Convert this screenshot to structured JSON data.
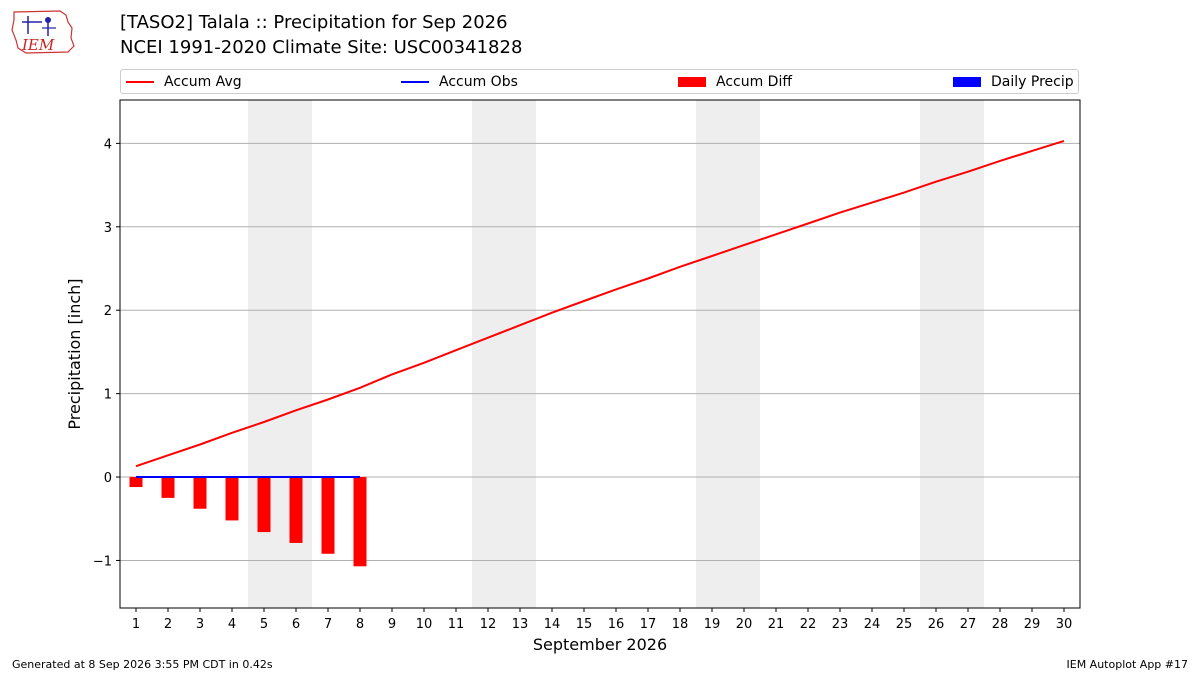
{
  "header": {
    "title_line1": "[TASO2] Talala :: Precipitation for Sep 2026",
    "title_line2": "NCEI 1991-2020 Climate Site: USC00341828",
    "logo_text": "IEM"
  },
  "legend": {
    "placement": "top",
    "items": [
      {
        "label": "Accum Avg",
        "color": "#ff0000",
        "kind": "line"
      },
      {
        "label": "Accum Obs",
        "color": "#0000ff",
        "kind": "line"
      },
      {
        "label": "Accum Diff",
        "color": "#ff0000",
        "kind": "bar"
      },
      {
        "label": "Daily Precip",
        "color": "#0000ff",
        "kind": "bar"
      }
    ]
  },
  "footer": {
    "left": "Generated at 8 Sep 2026 3:55 PM CDT in 0.42s",
    "right": "IEM Autoplot App #17"
  },
  "chart_data": {
    "type": "line",
    "xlabel": "September 2026",
    "ylabel": "Precipitation [inch]",
    "xlim": [
      0.5,
      30.5
    ],
    "ylim": [
      -1.57,
      4.52
    ],
    "yticks": [
      -1,
      0,
      1,
      2,
      3,
      4
    ],
    "ytick_labels": [
      "−1",
      "0",
      "1",
      "2",
      "3",
      "4"
    ],
    "xticks": [
      1,
      2,
      3,
      4,
      5,
      6,
      7,
      8,
      9,
      10,
      11,
      12,
      13,
      14,
      15,
      16,
      17,
      18,
      19,
      20,
      21,
      22,
      23,
      24,
      25,
      26,
      27,
      28,
      29,
      30
    ],
    "grid": "horizontal",
    "weekend_shading": [
      [
        5,
        6
      ],
      [
        12,
        13
      ],
      [
        19,
        20
      ],
      [
        26,
        27
      ]
    ],
    "series": [
      {
        "name": "Accum Avg",
        "type": "line",
        "color": "#ff0000",
        "x": [
          1,
          2,
          3,
          4,
          5,
          6,
          7,
          8,
          9,
          10,
          11,
          12,
          13,
          14,
          15,
          16,
          17,
          18,
          19,
          20,
          21,
          22,
          23,
          24,
          25,
          26,
          27,
          28,
          29,
          30
        ],
        "values": [
          0.13,
          0.26,
          0.39,
          0.53,
          0.66,
          0.8,
          0.93,
          1.07,
          1.23,
          1.37,
          1.52,
          1.67,
          1.82,
          1.97,
          2.11,
          2.25,
          2.38,
          2.52,
          2.65,
          2.78,
          2.91,
          3.04,
          3.17,
          3.29,
          3.41,
          3.54,
          3.66,
          3.79,
          3.91,
          4.03
        ]
      },
      {
        "name": "Accum Obs",
        "type": "line",
        "color": "#0000ff",
        "x": [
          1,
          2,
          3,
          4,
          5,
          6,
          7,
          8
        ],
        "values": [
          0,
          0,
          0,
          0,
          0,
          0,
          0,
          0
        ]
      },
      {
        "name": "Accum Diff",
        "type": "bar",
        "color": "#ff0000",
        "x": [
          1,
          2,
          3,
          4,
          5,
          6,
          7,
          8
        ],
        "values": [
          -0.12,
          -0.25,
          -0.38,
          -0.52,
          -0.66,
          -0.79,
          -0.92,
          -1.07
        ]
      },
      {
        "name": "Daily Precip",
        "type": "bar",
        "color": "#0000ff",
        "x": [
          1,
          2,
          3,
          4,
          5,
          6,
          7,
          8
        ],
        "values": [
          0,
          0,
          0,
          0,
          0,
          0,
          0,
          0
        ]
      }
    ]
  }
}
